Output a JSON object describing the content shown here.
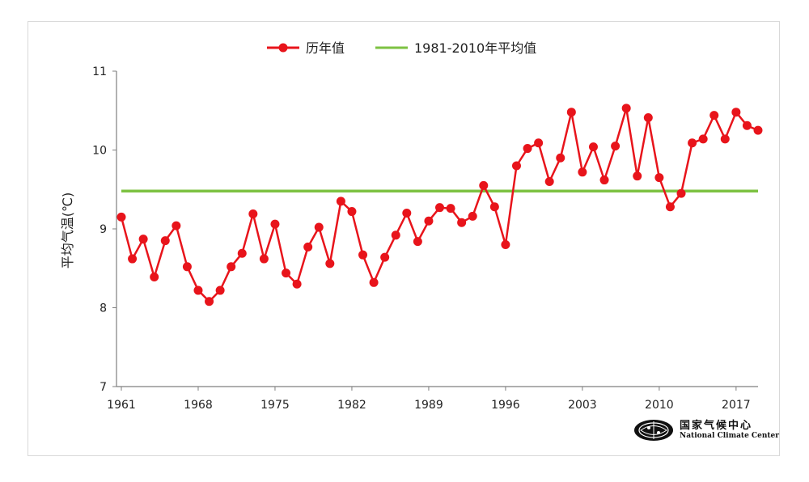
{
  "chart_data": {
    "type": "line",
    "title": "",
    "xlabel": "",
    "ylabel": "平均气温(℃)",
    "ylim": [
      7,
      11
    ],
    "yticks": [
      7,
      8,
      9,
      10,
      11
    ],
    "xlim": [
      1961,
      2019
    ],
    "xticks": [
      1961,
      1968,
      1975,
      1982,
      1989,
      1996,
      2003,
      2010,
      2017
    ],
    "grid": false,
    "legend": "top-center",
    "series": [
      {
        "name": "历年值",
        "color": "#e8141b",
        "marker": "circle",
        "x": [
          1961,
          1962,
          1963,
          1964,
          1965,
          1966,
          1967,
          1968,
          1969,
          1970,
          1971,
          1972,
          1973,
          1974,
          1975,
          1976,
          1977,
          1978,
          1979,
          1980,
          1981,
          1982,
          1983,
          1984,
          1985,
          1986,
          1987,
          1988,
          1989,
          1990,
          1991,
          1992,
          1993,
          1994,
          1995,
          1996,
          1997,
          1998,
          1999,
          2000,
          2001,
          2002,
          2003,
          2004,
          2005,
          2006,
          2007,
          2008,
          2009,
          2010,
          2011,
          2012,
          2013,
          2014,
          2015,
          2016,
          2017,
          2018,
          2019
        ],
        "values": [
          9.15,
          8.62,
          8.87,
          8.39,
          8.85,
          9.04,
          8.52,
          8.22,
          8.08,
          8.22,
          8.52,
          8.69,
          9.19,
          8.62,
          9.06,
          8.44,
          8.3,
          8.77,
          9.02,
          8.56,
          9.35,
          9.22,
          8.67,
          8.32,
          8.64,
          8.92,
          9.2,
          8.84,
          9.1,
          9.27,
          9.26,
          9.08,
          9.16,
          9.55,
          9.28,
          8.8,
          9.8,
          10.02,
          10.09,
          9.6,
          9.9,
          10.48,
          9.72,
          10.04,
          9.62,
          10.05,
          10.53,
          9.67,
          10.41,
          9.65,
          9.28,
          9.45,
          10.09,
          10.14,
          10.44,
          10.14,
          10.48,
          10.31,
          10.25
        ]
      },
      {
        "name": "1981-2010年平均值",
        "color": "#7dc242",
        "x": [
          1961,
          2019
        ],
        "values": [
          9.48,
          9.48
        ]
      }
    ]
  },
  "watermark": {
    "cn": "国家气候中心",
    "en": "National Climate Center"
  }
}
